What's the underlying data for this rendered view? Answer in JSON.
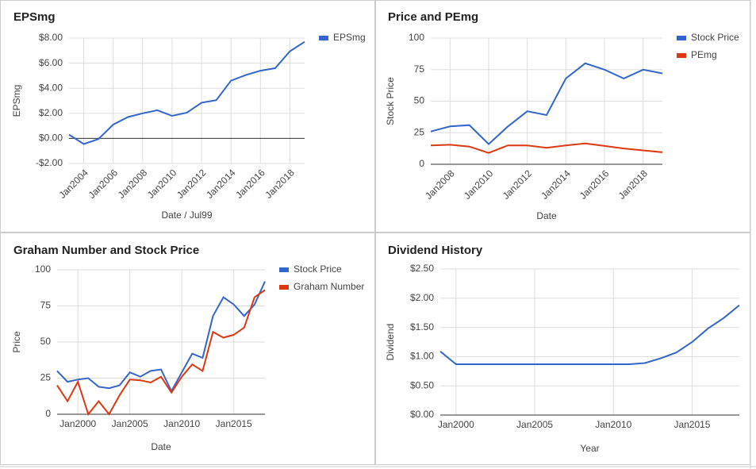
{
  "chart_data": [
    {
      "type": "line",
      "title": "EPSmg",
      "xlabel": "Date / Jul99",
      "ylabel": "EPSmg",
      "x": [
        2003,
        2004,
        2005,
        2006,
        2007,
        2008,
        2009,
        2010,
        2011,
        2012,
        2013,
        2014,
        2015,
        2016,
        2017,
        2018,
        2019
      ],
      "series": [
        {
          "name": "EPSmg",
          "color": "#3366cc",
          "values": [
            0.3,
            -0.45,
            -0.05,
            1.1,
            1.7,
            2.0,
            2.25,
            1.8,
            2.05,
            2.85,
            3.05,
            4.6,
            5.05,
            5.4,
            5.6,
            6.95,
            7.7
          ]
        }
      ],
      "xlim": [
        2003,
        2019
      ],
      "ylim": [
        -2,
        8
      ],
      "xticks": [
        {
          "value": 2004,
          "label": "Jan2004"
        },
        {
          "value": 2006,
          "label": "Jan2006"
        },
        {
          "value": 2008,
          "label": "Jan2008"
        },
        {
          "value": 2010,
          "label": "Jan2010"
        },
        {
          "value": 2012,
          "label": "Jan2012"
        },
        {
          "value": 2014,
          "label": "Jan2014"
        },
        {
          "value": 2016,
          "label": "Jan2016"
        },
        {
          "value": 2018,
          "label": "Jan2018"
        }
      ],
      "yticks": [
        {
          "value": -2,
          "label": "-$2.00"
        },
        {
          "value": 0,
          "label": "$0.00"
        },
        {
          "value": 2,
          "label": "$2.00"
        },
        {
          "value": 4,
          "label": "$4.00"
        },
        {
          "value": 6,
          "label": "$6.00"
        },
        {
          "value": 8,
          "label": "$8.00"
        }
      ],
      "grid": true
    },
    {
      "type": "line",
      "title": "Price and PEmg",
      "xlabel": "Date",
      "ylabel": "Stock Price",
      "x": [
        2007,
        2008,
        2009,
        2010,
        2011,
        2012,
        2013,
        2014,
        2015,
        2016,
        2017,
        2018,
        2019
      ],
      "series": [
        {
          "name": "Stock Price",
          "color": "#3366cc",
          "values": [
            26,
            30,
            31,
            16,
            30,
            42,
            39,
            68,
            80,
            75,
            68,
            75,
            72
          ]
        },
        {
          "name": "PEmg",
          "color": "#dc3912",
          "values": [
            15,
            15.5,
            14,
            9,
            15,
            15,
            13,
            15,
            16.5,
            14.5,
            12.5,
            11,
            9.5
          ]
        }
      ],
      "xlim": [
        2007,
        2019
      ],
      "ylim": [
        0,
        100
      ],
      "xticks": [
        {
          "value": 2008,
          "label": "Jan2008"
        },
        {
          "value": 2010,
          "label": "Jan2010"
        },
        {
          "value": 2012,
          "label": "Jan2012"
        },
        {
          "value": 2014,
          "label": "Jan2014"
        },
        {
          "value": 2016,
          "label": "Jan2016"
        },
        {
          "value": 2018,
          "label": "Jan2018"
        }
      ],
      "yticks": [
        0,
        25,
        50,
        75,
        100
      ],
      "grid": true
    },
    {
      "type": "line",
      "title": "Graham Number and Stock Price",
      "xlabel": "Date",
      "ylabel": "Price",
      "x": [
        1998,
        1999,
        2000,
        2001,
        2002,
        2003,
        2004,
        2005,
        2006,
        2007,
        2008,
        2009,
        2010,
        2011,
        2012,
        2013,
        2014,
        2015,
        2016,
        2017,
        2018
      ],
      "series": [
        {
          "name": "Stock Price",
          "color": "#3366cc",
          "values": [
            30,
            22.5,
            24,
            25,
            19,
            18,
            20,
            29,
            26,
            30,
            31,
            16,
            29,
            42,
            39,
            68,
            81,
            76,
            68,
            76,
            92
          ]
        },
        {
          "name": "Graham Number",
          "color": "#dc3912",
          "values": [
            20,
            9,
            22.5,
            0,
            9,
            0,
            13,
            24,
            23.5,
            22,
            26,
            15,
            26,
            34.5,
            30,
            57,
            53,
            55,
            60,
            81,
            86
          ]
        }
      ],
      "xlim": [
        1998,
        2018
      ],
      "ylim": [
        0,
        100
      ],
      "xticks": [
        {
          "value": 2000,
          "label": "Jan2000"
        },
        {
          "value": 2005,
          "label": "Jan2005"
        },
        {
          "value": 2010,
          "label": "Jan2010"
        },
        {
          "value": 2015,
          "label": "Jan2015"
        }
      ],
      "yticks": [
        0,
        25,
        50,
        75,
        100
      ],
      "grid": true
    },
    {
      "type": "line",
      "title": "Dividend History",
      "xlabel": "Year",
      "ylabel": "Dividend",
      "x": [
        1999,
        2000,
        2001,
        2002,
        2003,
        2004,
        2005,
        2006,
        2007,
        2008,
        2009,
        2010,
        2011,
        2012,
        2013,
        2014,
        2015,
        2016,
        2017,
        2018
      ],
      "series": [
        {
          "color": "#3366cc",
          "values": [
            1.09,
            0.87,
            0.87,
            0.87,
            0.87,
            0.87,
            0.87,
            0.87,
            0.87,
            0.87,
            0.87,
            0.87,
            0.87,
            0.89,
            0.97,
            1.07,
            1.25,
            1.48,
            1.66,
            1.88
          ]
        }
      ],
      "xlim": [
        1999,
        2018
      ],
      "ylim": [
        0,
        2.5
      ],
      "xticks": [
        {
          "value": 2000,
          "label": "Jan2000"
        },
        {
          "value": 2005,
          "label": "Jan2005"
        },
        {
          "value": 2010,
          "label": "Jan2010"
        },
        {
          "value": 2015,
          "label": "Jan2015"
        }
      ],
      "yticks": [
        {
          "value": 0,
          "label": "$0.00"
        },
        {
          "value": 0.5,
          "label": "$0.50"
        },
        {
          "value": 1,
          "label": "$1.00"
        },
        {
          "value": 1.5,
          "label": "$1.50"
        },
        {
          "value": 2,
          "label": "$2.00"
        },
        {
          "value": 2.5,
          "label": "$2.50"
        }
      ],
      "grid": true
    }
  ]
}
